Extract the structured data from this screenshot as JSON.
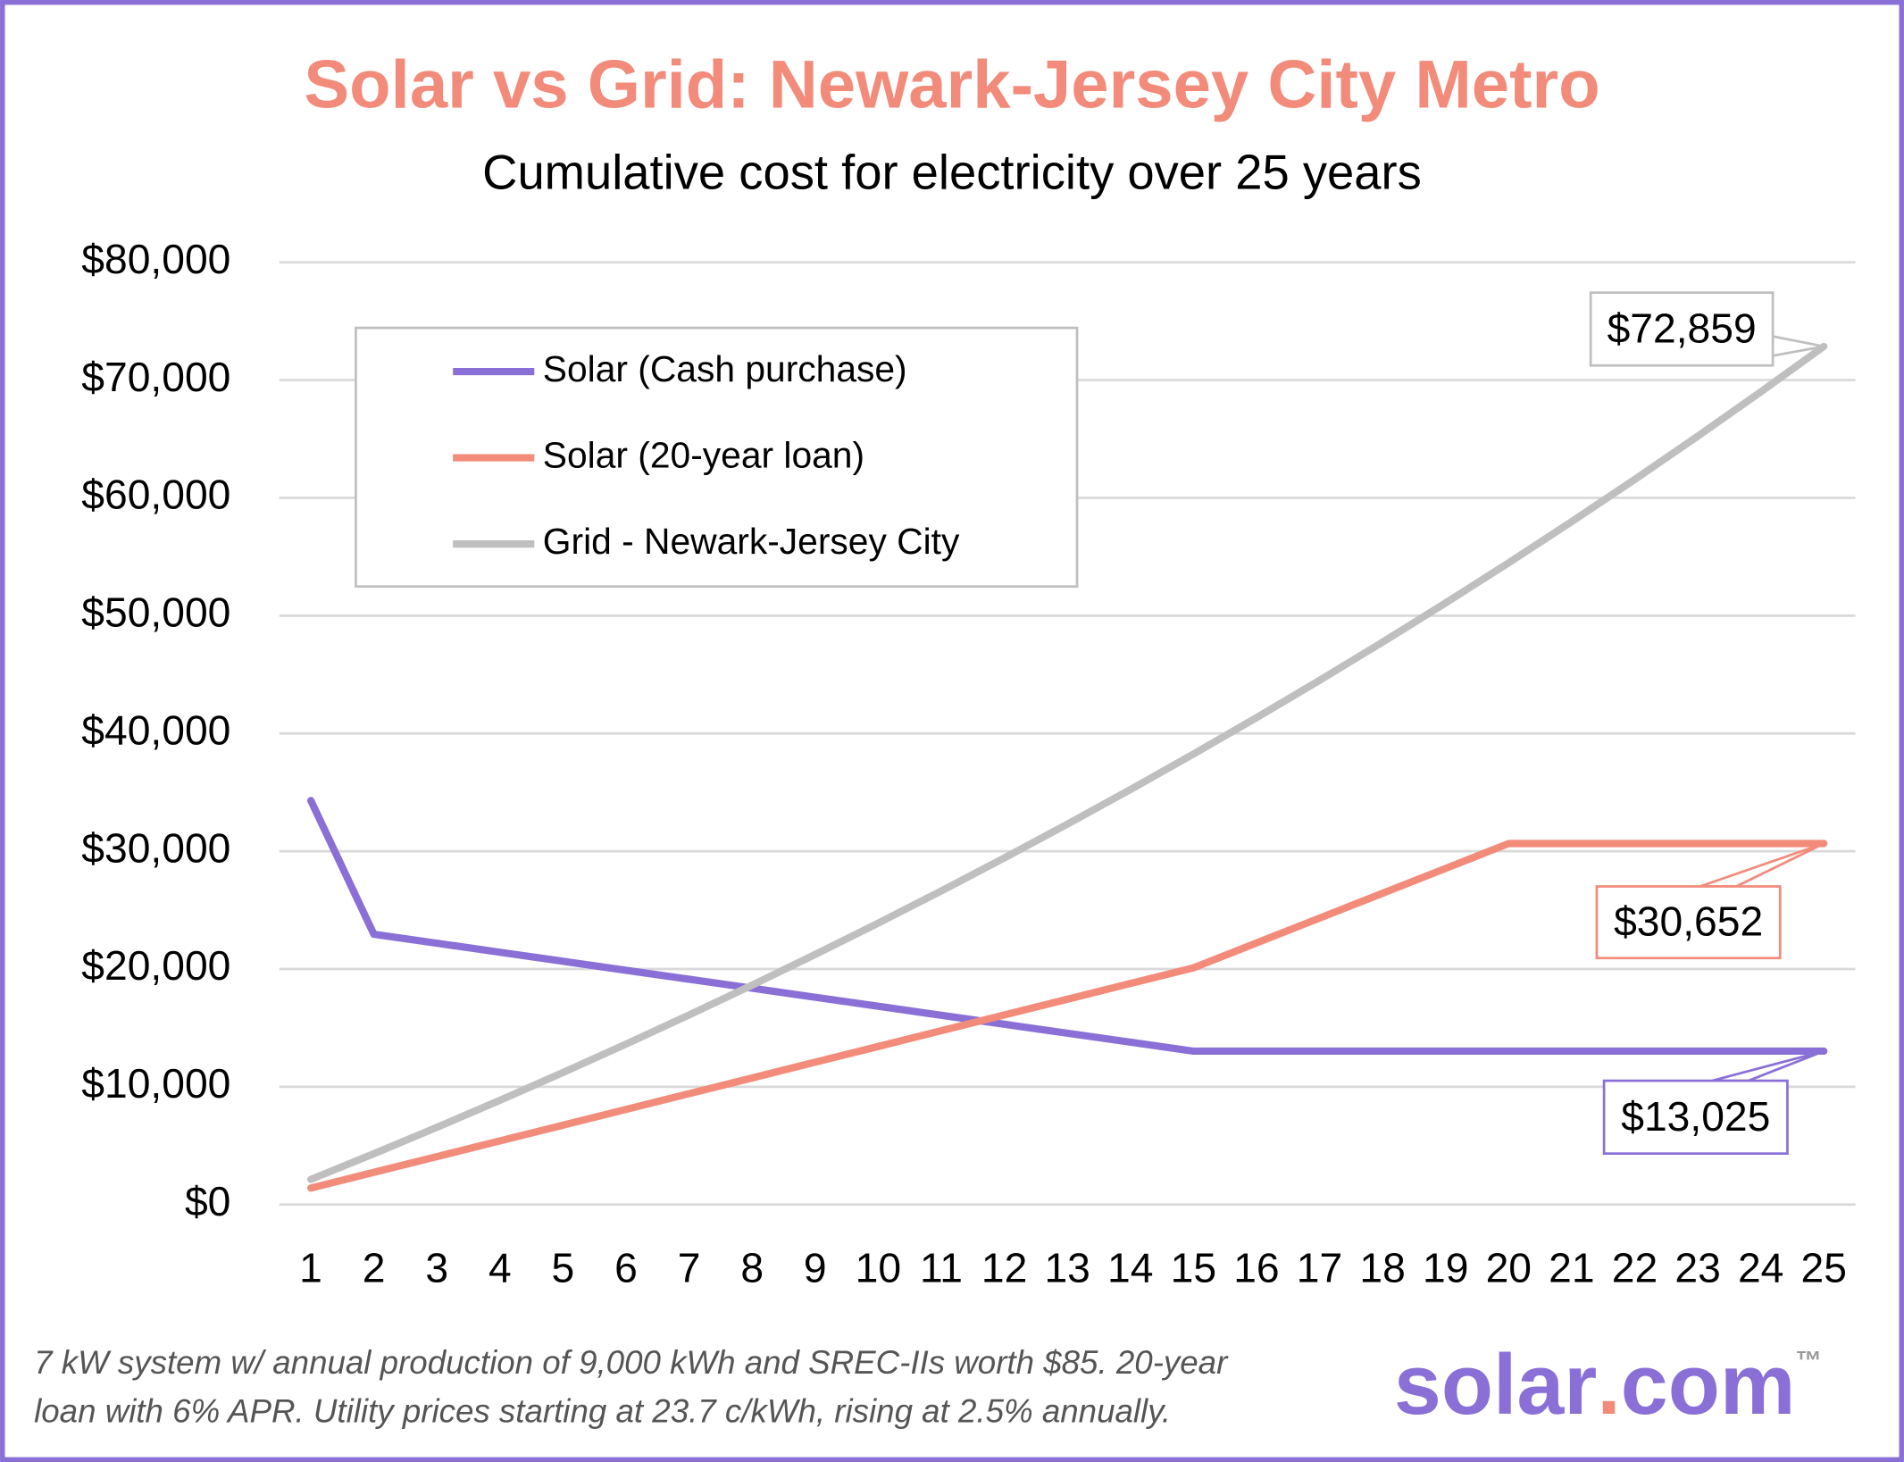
{
  "chart_data": {
    "type": "line",
    "title": "Solar vs Grid: Newark-Jersey City Metro",
    "subtitle": "Cumulative cost for electricity over 25 years",
    "x": [
      1,
      2,
      3,
      4,
      5,
      6,
      7,
      8,
      9,
      10,
      11,
      12,
      13,
      14,
      15,
      16,
      17,
      18,
      19,
      20,
      21,
      22,
      23,
      24,
      25
    ],
    "xlim": [
      0.5,
      25.5
    ],
    "xticks": [
      1,
      2,
      3,
      4,
      5,
      6,
      7,
      8,
      9,
      10,
      11,
      12,
      13,
      14,
      15,
      16,
      17,
      18,
      19,
      20,
      21,
      22,
      23,
      24,
      25
    ],
    "ylim": [
      0,
      80000
    ],
    "yticks": [
      {
        "value": 0,
        "label": "$0"
      },
      {
        "value": 10000,
        "label": "$10,000"
      },
      {
        "value": 20000,
        "label": "$20,000"
      },
      {
        "value": 30000,
        "label": "$30,000"
      },
      {
        "value": 40000,
        "label": "$40,000"
      },
      {
        "value": 50000,
        "label": "$50,000"
      },
      {
        "value": 60000,
        "label": "$60,000"
      },
      {
        "value": 70000,
        "label": "$70,000"
      },
      {
        "value": 80000,
        "label": "$80,000"
      }
    ],
    "grid": true,
    "legend": "top-left",
    "series": [
      {
        "name": "Solar (Cash purchase)",
        "color": "#8a70d6",
        "end_label": "$13,025",
        "values": [
          34300,
          22950,
          22190,
          21420,
          20660,
          19890,
          19130,
          18370,
          17600,
          16840,
          16070,
          15310,
          14550,
          13790,
          13025,
          13025,
          13025,
          13025,
          13025,
          13025,
          13025,
          13025,
          13025,
          13025,
          13025
        ]
      },
      {
        "name": "Solar (20-year loan)",
        "color": "#f28b7a",
        "end_label": "$30,652",
        "values": [
          1400,
          2740,
          4070,
          5410,
          6740,
          8080,
          9420,
          10750,
          12090,
          13420,
          14760,
          16100,
          17430,
          18770,
          20100,
          22210,
          24320,
          26430,
          28540,
          30652,
          30652,
          30652,
          30652,
          30652,
          30652
        ]
      },
      {
        "name": "Grid - Newark-Jersey City",
        "color": "#bfbfbf",
        "end_label": "$72,859",
        "values": [
          2133,
          4319,
          6560,
          8857,
          11212,
          13625,
          16099,
          18634,
          21233,
          23897,
          26627,
          29426,
          32295,
          35235,
          38249,
          41338,
          44504,
          47750,
          51077,
          54487,
          57982,
          61565,
          65237,
          69000,
          72859
        ]
      }
    ],
    "footnote": [
      "7 kW system w/ annual production of 9,000 kWh and SREC-IIs worth $85. 20-year",
      "loan with 6% APR. Utility prices starting at 23.7 c/kWh, rising at 2.5% annually."
    ]
  },
  "logo": {
    "name": "solar",
    "dot": ".",
    "domain": "com",
    "mark": "™"
  }
}
